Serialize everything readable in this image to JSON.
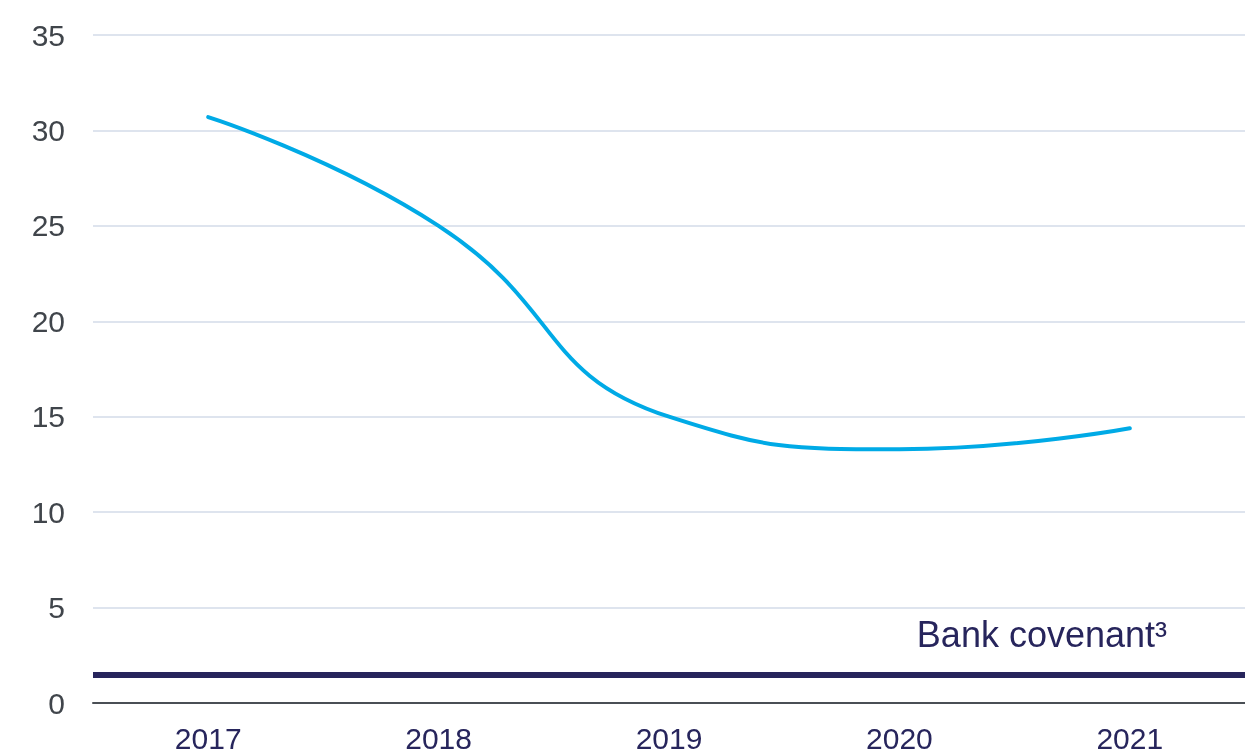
{
  "chart_data": {
    "type": "line",
    "categories": [
      "2017",
      "2018",
      "2019",
      "2020",
      "2021"
    ],
    "series": [
      {
        "color": "#00aae6",
        "values": [
          30.7,
          25.0,
          15.0,
          13.3,
          14.4
        ]
      }
    ],
    "ylim": [
      0,
      35
    ],
    "yticks": [
      0,
      5,
      10,
      15,
      20,
      25,
      30,
      35
    ],
    "grid": "y",
    "marker": "none",
    "line_style": "solid",
    "ref_lines": [
      {
        "axis": "y",
        "value": 1.5,
        "label": "Bank covenant³",
        "color": "#27255c"
      }
    ]
  }
}
